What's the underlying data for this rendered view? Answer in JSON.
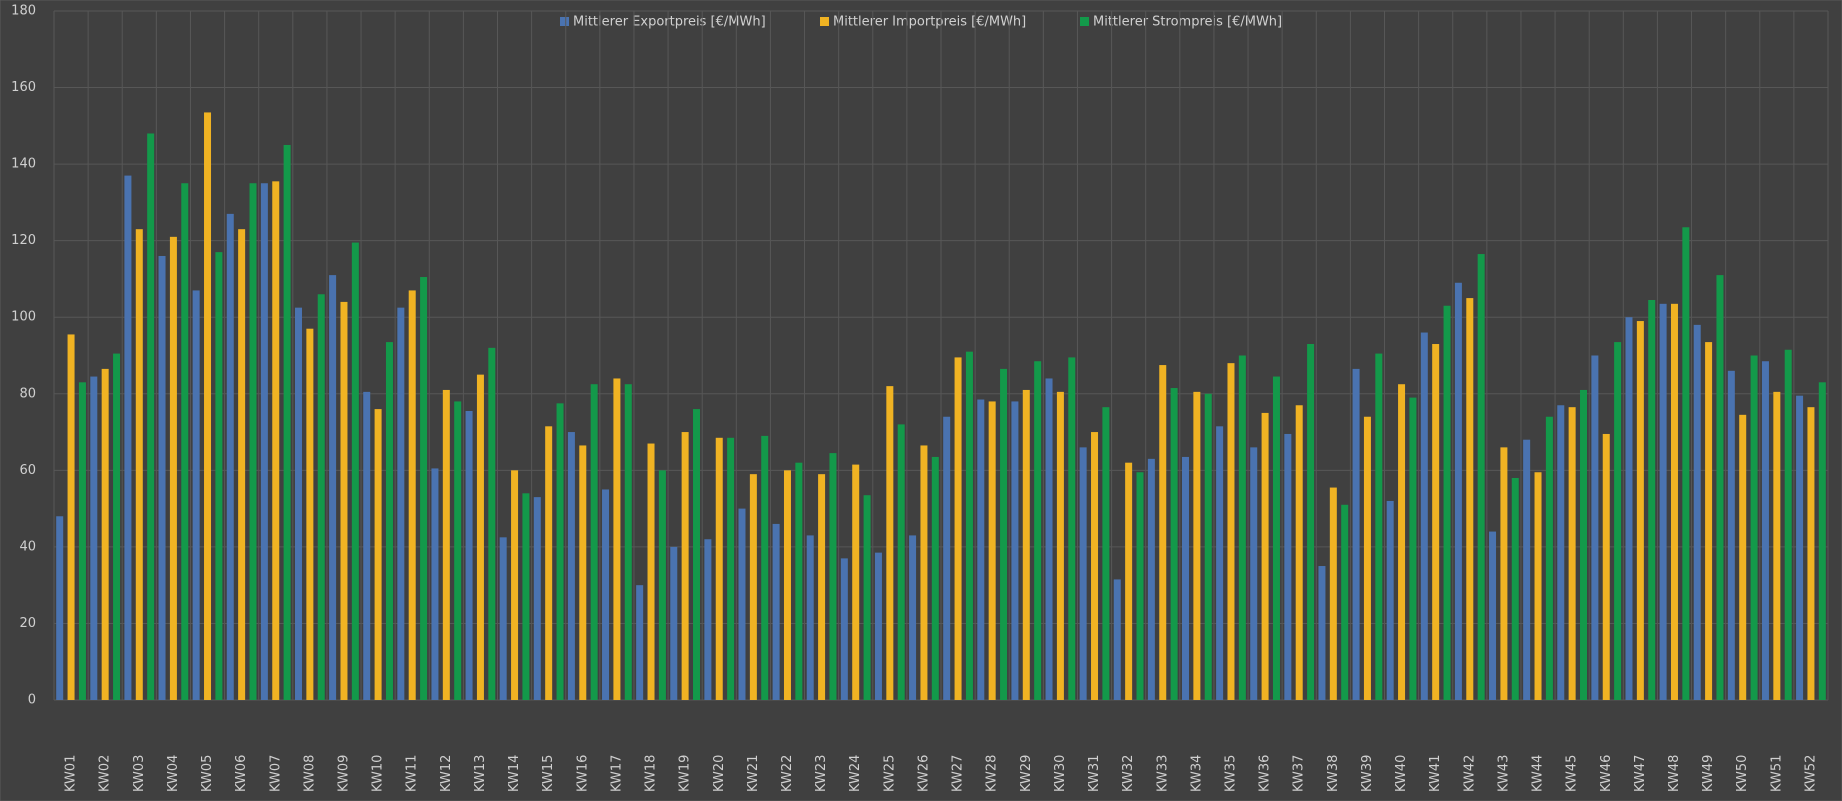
{
  "chart_data": {
    "type": "bar",
    "categories": [
      "KW01",
      "KW02",
      "KW03",
      "KW04",
      "KW05",
      "KW06",
      "KW07",
      "KW08",
      "KW09",
      "KW10",
      "KW11",
      "KW12",
      "KW13",
      "KW14",
      "KW15",
      "KW16",
      "KW17",
      "KW18",
      "KW19",
      "KW20",
      "KW21",
      "KW22",
      "KW23",
      "KW24",
      "KW25",
      "KW26",
      "KW27",
      "KW28",
      "KW29",
      "KW30",
      "KW31",
      "KW32",
      "KW33",
      "KW34",
      "KW35",
      "KW36",
      "KW37",
      "KW38",
      "KW39",
      "KW40",
      "KW41",
      "KW42",
      "KW43",
      "KW44",
      "KW45",
      "KW46",
      "KW47",
      "KW48",
      "KW49",
      "KW50",
      "KW51",
      "KW52"
    ],
    "series": [
      {
        "name": "Mittlerer Exportpreis [€/MWh]",
        "color": "#4a73b0",
        "values": [
          48,
          84.5,
          137,
          116,
          107,
          127,
          135,
          102.5,
          111,
          80.5,
          102.5,
          60.5,
          75.5,
          42.5,
          53,
          70,
          55,
          30,
          40,
          42,
          50,
          46,
          43,
          37,
          38.5,
          43,
          74,
          78.5,
          78,
          84,
          66,
          31.5,
          63,
          63.5,
          71.5,
          66,
          69.5,
          35,
          86.5,
          52,
          96,
          109,
          44,
          68,
          77,
          90,
          100,
          103.5,
          98,
          86,
          88.5,
          79.5
        ]
      },
      {
        "name": "Mittlerer Importpreis [€/MWh]",
        "color": "#f0b323",
        "values": [
          95.5,
          86.5,
          123,
          121,
          153.5,
          123,
          135.5,
          97,
          104,
          76,
          107,
          81,
          85,
          60,
          71.5,
          66.5,
          84,
          67,
          70,
          68.5,
          59,
          60,
          59,
          61.5,
          82,
          66.5,
          89.5,
          78,
          81,
          80.5,
          70,
          62,
          87.5,
          80.5,
          88,
          75,
          77,
          55.5,
          74,
          82.5,
          93,
          105,
          66,
          59.5,
          76.5,
          69.5,
          99,
          103.5,
          93.5,
          74.5,
          80.5,
          76.5
        ]
      },
      {
        "name": "Mittlerer Strompreis [€/MWh]",
        "color": "#13994a",
        "values": [
          83,
          90.5,
          148,
          135,
          117,
          135,
          145,
          106,
          119.5,
          93.5,
          110.5,
          78,
          92,
          54,
          77.5,
          82.5,
          82.5,
          60,
          76,
          68.5,
          69,
          62,
          64.5,
          53.5,
          72,
          63.5,
          91,
          86.5,
          88.5,
          89.5,
          76.5,
          59.5,
          81.5,
          80,
          90,
          84.5,
          93,
          51,
          90.5,
          79,
          103,
          116.5,
          58,
          74,
          81,
          93.5,
          104.5,
          123.5,
          111,
          90,
          91.5,
          83
        ]
      }
    ],
    "ylim": [
      0,
      180
    ],
    "yticks": [
      0,
      20,
      40,
      60,
      80,
      100,
      120,
      140,
      160,
      180
    ],
    "grid": true,
    "legend": "top"
  }
}
